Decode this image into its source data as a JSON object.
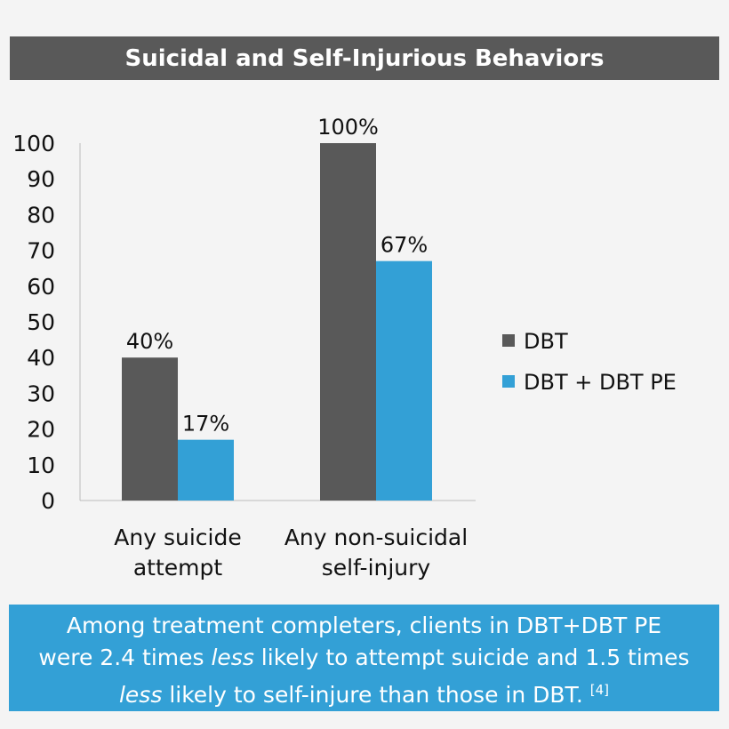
{
  "chart_data": {
    "type": "bar",
    "title": "Suicidal and Self-Injurious Behaviors",
    "categories": [
      "Any suicide attempt",
      "Any non-suicidal self-injury"
    ],
    "category_lines": [
      [
        "Any suicide",
        "attempt"
      ],
      [
        "Any non-suicidal",
        "self-injury"
      ]
    ],
    "series": [
      {
        "name": "DBT",
        "values": [
          40,
          100
        ],
        "labels": [
          "40%",
          "100%"
        ],
        "color": "#595959"
      },
      {
        "name": "DBT + DBT PE",
        "values": [
          17,
          67
        ],
        "labels": [
          "17%",
          "67%"
        ],
        "color": "#33a0d6"
      }
    ],
    "ylim": [
      0,
      100
    ],
    "yticks": [
      "0",
      "10",
      "20",
      "30",
      "40",
      "50",
      "60",
      "70",
      "80",
      "90",
      "100"
    ],
    "grid": false,
    "legend": "right"
  },
  "note": {
    "line1": "Among treatment completers, clients in DBT+DBT PE",
    "line2a": "were 2.4 times ",
    "line2b": "less",
    "line2c": " likely to attempt suicide and 1.5 times",
    "line3a": "less",
    "line3b": " likely to self-injure than those in DBT. ",
    "ref": "[4]"
  },
  "colors": {
    "title_bg": "#595959",
    "note_bg": "#33a0d6",
    "background": "#f4f4f4"
  }
}
